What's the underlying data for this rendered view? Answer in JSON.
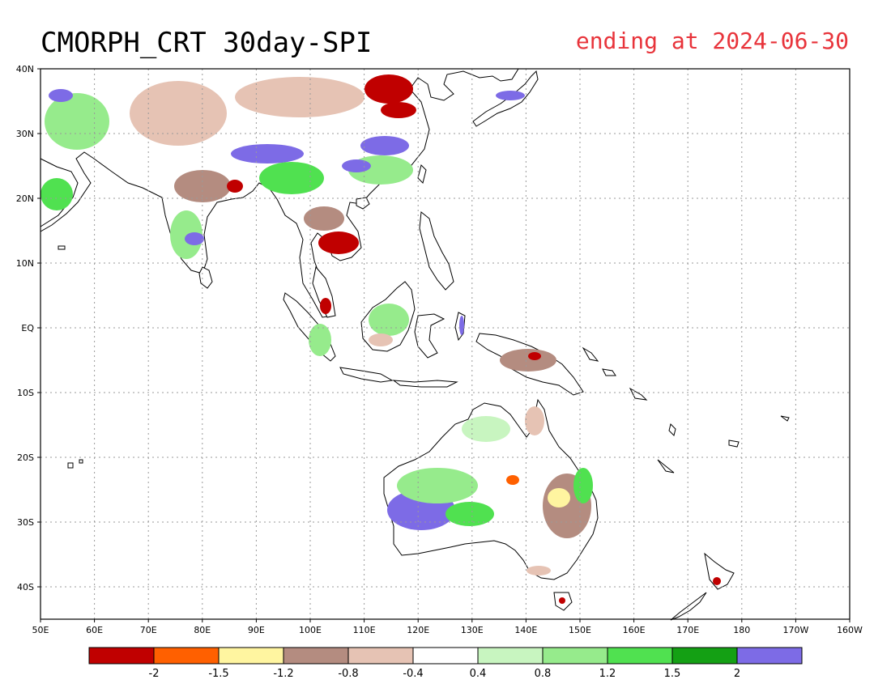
{
  "title": "CMORPH_CRT 30day-SPI",
  "subtitle": "ending at 2024-06-30",
  "subtitle_color": "#e8343b",
  "map": {
    "lon_range": [
      50,
      200
    ],
    "lat_range": [
      -45,
      40
    ],
    "x_ticks": [
      {
        "lon": 50,
        "label": "50E"
      },
      {
        "lon": 60,
        "label": "60E"
      },
      {
        "lon": 70,
        "label": "70E"
      },
      {
        "lon": 80,
        "label": "80E"
      },
      {
        "lon": 90,
        "label": "90E"
      },
      {
        "lon": 100,
        "label": "100E"
      },
      {
        "lon": 110,
        "label": "110E"
      },
      {
        "lon": 120,
        "label": "120E"
      },
      {
        "lon": 130,
        "label": "130E"
      },
      {
        "lon": 140,
        "label": "140E"
      },
      {
        "lon": 150,
        "label": "150E"
      },
      {
        "lon": 160,
        "label": "160E"
      },
      {
        "lon": 170,
        "label": "170E"
      },
      {
        "lon": 180,
        "label": "180"
      },
      {
        "lon": 190,
        "label": "170W"
      },
      {
        "lon": 200,
        "label": "160W"
      }
    ],
    "y_ticks": [
      {
        "lat": 40,
        "label": "40N"
      },
      {
        "lat": 30,
        "label": "30N"
      },
      {
        "lat": 20,
        "label": "20N"
      },
      {
        "lat": 10,
        "label": "10N"
      },
      {
        "lat": 0,
        "label": "EQ"
      },
      {
        "lat": -10,
        "label": "10S"
      },
      {
        "lat": -20,
        "label": "20S"
      },
      {
        "lat": -30,
        "label": "30S"
      },
      {
        "lat": -40,
        "label": "40S"
      }
    ],
    "grid": true
  },
  "colorbar": {
    "colors": [
      "#c00000",
      "#ff6000",
      "#fff5a0",
      "#b48c80",
      "#e6c3b4",
      "#ffffff",
      "#c8f5c0",
      "#96eb8c",
      "#50e150",
      "#14a014",
      "#7d6be6"
    ],
    "labels": [
      "-2",
      "-1.5",
      "-1.2",
      "-0.8",
      "-0.4",
      "0.4",
      "0.8",
      "1.2",
      "1.5",
      "2"
    ]
  }
}
